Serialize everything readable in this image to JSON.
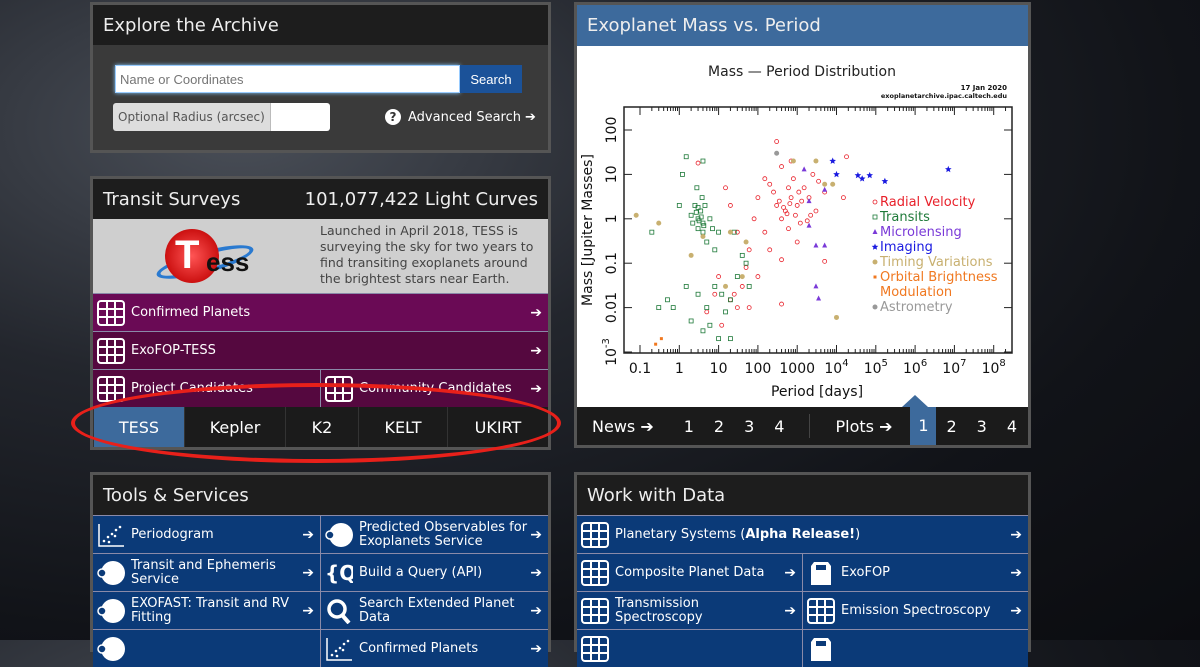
{
  "explore": {
    "title": "Explore the Archive",
    "search_placeholder": "Name or Coordinates",
    "search_button": "Search",
    "radius_label": "Optional Radius (arcsec)",
    "radius_value": "",
    "advanced_search": "Advanced Search"
  },
  "transit": {
    "title": "Transit Surveys",
    "count": "101,077,422 Light Curves",
    "logo_text": "TESS",
    "description": "Launched in April 2018, TESS is surveying the sky for two years to find transiting exoplanets around the brightest stars near Earth.",
    "links": [
      {
        "label": "Confirmed Planets"
      },
      {
        "label": "ExoFOP-TESS"
      },
      {
        "label": "Project Candidates"
      },
      {
        "label": "Community Candidates"
      }
    ],
    "tabs": [
      {
        "label": "TESS",
        "active": true
      },
      {
        "label": "Kepler"
      },
      {
        "label": "K2"
      },
      {
        "label": "KELT"
      },
      {
        "label": "UKIRT"
      }
    ]
  },
  "plot_panel": {
    "title": "Exoplanet Mass vs. Period",
    "nav": {
      "news": "News",
      "news_pages": [
        "1",
        "2",
        "3",
        "4"
      ],
      "plots": "Plots",
      "plot_pages": [
        "1",
        "2",
        "3",
        "4"
      ],
      "active_plot_page": "1"
    }
  },
  "chart_data": {
    "type": "scatter",
    "title": "Mass — Period Distribution",
    "date": "17 Jan 2020",
    "source": "exoplanetarchive.ipac.caltech.edu",
    "xlabel": "Period [days]",
    "ylabel": "Mass [Jupiter Masses]",
    "xscale": "log",
    "yscale": "log",
    "xlim": [
      0.04,
      200000000
    ],
    "ylim": [
      0.0008,
      300
    ],
    "xticks": [
      "0.1",
      "1",
      "10",
      "100",
      "1000",
      "10^4",
      "10^5",
      "10^6",
      "10^7",
      "10^8"
    ],
    "yticks": [
      "10^-3",
      "0.01",
      "0.1",
      "1",
      "10",
      "100"
    ],
    "legend_position": "right",
    "series": [
      {
        "name": "Radial Velocity",
        "color": "#e8202a",
        "marker": "open-circle",
        "points": [
          [
            300,
            2
          ],
          [
            500,
            1.5
          ],
          [
            700,
            3
          ],
          [
            1000,
            2
          ],
          [
            400,
            1
          ],
          [
            600,
            5
          ],
          [
            1500,
            5
          ],
          [
            2000,
            3
          ],
          [
            800,
            8
          ],
          [
            250,
            4
          ],
          [
            3000,
            1.5
          ],
          [
            1200,
            0.8
          ],
          [
            150,
            0.5
          ],
          [
            100,
            3
          ],
          [
            200,
            6
          ],
          [
            2500,
            10
          ],
          [
            5000,
            4
          ],
          [
            400,
            15
          ],
          [
            300,
            55
          ],
          [
            700,
            20
          ],
          [
            1000,
            0.3
          ],
          [
            60,
            0.2
          ],
          [
            30,
            0.5
          ],
          [
            20,
            2
          ],
          [
            15,
            5
          ],
          [
            10,
            0.05
          ],
          [
            8,
            0.02
          ],
          [
            20,
            0.015
          ],
          [
            40,
            0.03
          ],
          [
            60,
            0.01
          ],
          [
            5,
            0.008
          ],
          [
            12,
            0.004
          ],
          [
            30,
            0.01
          ],
          [
            100,
            0.05
          ],
          [
            200,
            0.2
          ],
          [
            400,
            0.12
          ],
          [
            3,
            18
          ],
          [
            15000,
            3
          ],
          [
            1800,
            0.9
          ],
          [
            900,
            1.2
          ],
          [
            600,
            0.6
          ],
          [
            1300,
            2.5
          ],
          [
            3500,
            7
          ],
          [
            150,
            8
          ],
          [
            80,
            1
          ],
          [
            50,
            0.08
          ],
          [
            25,
            0.02
          ],
          [
            350,
            2.5
          ],
          [
            450,
            1.8
          ],
          [
            550,
            1.3
          ],
          [
            650,
            2.2
          ],
          [
            1100,
            4
          ],
          [
            2200,
            1.2
          ],
          [
            5000,
            0.11
          ],
          [
            400,
            0.012
          ],
          [
            18000,
            25
          ]
        ]
      },
      {
        "name": "Transits",
        "color": "#1f7a3a",
        "marker": "open-square",
        "points": [
          [
            3,
            1
          ],
          [
            4,
            0.8
          ],
          [
            3.5,
            1.5
          ],
          [
            2.5,
            2
          ],
          [
            4,
            0.5
          ],
          [
            5,
            0.3
          ],
          [
            3,
            0.6
          ],
          [
            2,
            1.2
          ],
          [
            4.5,
            2
          ],
          [
            6,
            1
          ],
          [
            3.8,
            3
          ],
          [
            2.8,
            5
          ],
          [
            1.5,
            25
          ],
          [
            4,
            20
          ],
          [
            1.2,
            10
          ],
          [
            8,
            0.2
          ],
          [
            10,
            0.5
          ],
          [
            3,
            0.02
          ],
          [
            5,
            0.01
          ],
          [
            8,
            0.03
          ],
          [
            12,
            0.02
          ],
          [
            20,
            0.015
          ],
          [
            2,
            0.005
          ],
          [
            1.5,
            0.03
          ],
          [
            0.7,
            0.01
          ],
          [
            0.5,
            0.015
          ],
          [
            4,
            0.003
          ],
          [
            10,
            0.002
          ],
          [
            20,
            0.002
          ],
          [
            30,
            0.05
          ],
          [
            50,
            0.1
          ],
          [
            60,
            0.03
          ],
          [
            15,
            0.008
          ],
          [
            25,
            0.5
          ],
          [
            1,
            2
          ],
          [
            7,
            0.6
          ],
          [
            2.2,
            0.8
          ],
          [
            40,
            0.15
          ],
          [
            6,
            0.004
          ],
          [
            3,
            1.8
          ],
          [
            3.2,
            0.9
          ],
          [
            3.6,
            1.1
          ],
          [
            4.2,
            0.7
          ],
          [
            2.7,
            1.4
          ],
          [
            0.2,
            0.5
          ],
          [
            0.3,
            0.01
          ]
        ]
      },
      {
        "name": "Microlensing",
        "color": "#7a3ad8",
        "marker": "triangle",
        "points": [
          [
            1500,
            13
          ],
          [
            2000,
            0.7
          ],
          [
            2000,
            2.5
          ],
          [
            3000,
            0.25
          ],
          [
            5000,
            0.25
          ],
          [
            3000,
            0.03
          ],
          [
            3500,
            0.016
          ],
          [
            5000,
            4.5
          ]
        ]
      },
      {
        "name": "Imaging",
        "color": "#1a1ae0",
        "marker": "star",
        "points": [
          [
            8000,
            20
          ],
          [
            10000,
            10
          ],
          [
            35000,
            9.5
          ],
          [
            45000,
            8
          ],
          [
            70000,
            9.5
          ],
          [
            170000,
            7
          ],
          [
            7000000,
            13
          ]
        ]
      },
      {
        "name": "Timing Variations",
        "color": "#c8b070",
        "marker": "filled-circle",
        "points": [
          [
            0.08,
            1.2
          ],
          [
            0.3,
            0.8
          ],
          [
            2,
            0.15
          ],
          [
            4,
            0.4
          ],
          [
            20,
            0.5
          ],
          [
            50,
            0.3
          ],
          [
            10000,
            0.006
          ],
          [
            800,
            20
          ],
          [
            3000,
            20
          ],
          [
            5000,
            6
          ],
          [
            8000,
            6
          ],
          [
            15,
            0.03
          ],
          [
            40,
            0.05
          ]
        ]
      },
      {
        "name": "Orbital Brightness Modulation",
        "color": "#f07820",
        "marker": "filled-square",
        "points": [
          [
            0.25,
            0.0015
          ],
          [
            0.35,
            0.002
          ]
        ]
      },
      {
        "name": "Astrometry",
        "color": "#999999",
        "marker": "filled-circle",
        "points": [
          [
            300,
            30
          ]
        ]
      }
    ]
  },
  "tools": {
    "title": "Tools & Services",
    "rows": [
      [
        {
          "label": "Periodogram",
          "icon": "scatter-icon"
        },
        {
          "label": "Predicted Observables for Exoplanets Service",
          "icon": "planet-icon"
        }
      ],
      [
        {
          "label": "Transit and Ephemeris Service",
          "icon": "planet-icon"
        },
        {
          "label": "Build a Query (API)",
          "icon": "query-icon"
        }
      ],
      [
        {
          "label": "EXOFAST: Transit and RV Fitting",
          "icon": "planet-icon"
        },
        {
          "label": "Search Extended Planet Data",
          "icon": "search-icon"
        }
      ],
      [
        {
          "label": "",
          "icon": "planet-icon"
        },
        {
          "label": "Confirmed Planets",
          "icon": "scatter-icon"
        }
      ]
    ]
  },
  "work": {
    "title": "Work with Data",
    "planetary_systems": "Planetary Systems (",
    "alpha": "Alpha Release!",
    "close_paren": ")",
    "rows": [
      [
        {
          "label": "Composite Planet Data",
          "icon": "table-icon"
        },
        {
          "label": "ExoFOP",
          "icon": "exofop-icon"
        }
      ],
      [
        {
          "label": "Transmission Spectroscopy",
          "icon": "table-icon"
        },
        {
          "label": "Emission Spectroscopy",
          "icon": "table-icon"
        }
      ],
      [
        {
          "label": "",
          "icon": "table-icon"
        },
        {
          "label": "",
          "icon": "exofop-icon"
        }
      ]
    ]
  },
  "colors": {
    "accent_blue": "#3d6a9c",
    "tess_purple": "#6a0a55",
    "tool_blue": "#0b3a78",
    "highlight_ellipse": "#e8201a"
  }
}
